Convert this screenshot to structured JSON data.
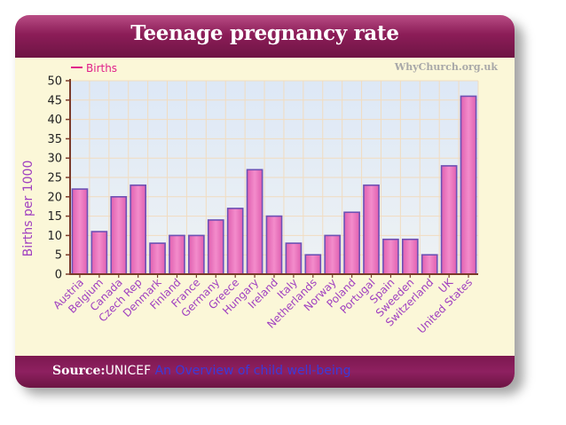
{
  "header": {
    "title": "Teenage pregnancy rate"
  },
  "watermark": "WhyChurch.org.uk",
  "footer": {
    "source_label": "Source:",
    "source_name": "UNICEF",
    "source_link": "An Overview of child well-being"
  },
  "colors": {
    "bar_fill": "#ec7ec0",
    "bar_stroke": "#6d50b4",
    "axis_label": "#a040c0",
    "header": "#8c1d58",
    "legend_line": "#e0208a"
  },
  "chart_data": {
    "type": "bar",
    "title": "Teenage pregnancy rate",
    "ylabel": "Births per 1000",
    "xlabel": "",
    "ylim": [
      0,
      50
    ],
    "yticks": [
      0,
      5,
      10,
      15,
      20,
      25,
      30,
      35,
      40,
      45,
      50
    ],
    "grid": true,
    "legend": {
      "position": "top-left",
      "entries": [
        "Births"
      ]
    },
    "categories": [
      "Austria",
      "Belgium",
      "Canada",
      "Czech Rep",
      "Denmark",
      "Finland",
      "France",
      "Germany",
      "Greece",
      "Hungary",
      "Ireland",
      "Italy",
      "Netherlands",
      "Norway",
      "Poland",
      "Portugal",
      "Spain",
      "Sweeden",
      "Switzerland",
      "UK",
      "United States"
    ],
    "series": [
      {
        "name": "Births",
        "values": [
          22,
          11,
          20,
          23,
          8,
          10,
          10,
          14,
          17,
          27,
          15,
          8,
          5,
          10,
          16,
          23,
          9,
          9,
          5,
          28,
          46
        ]
      }
    ]
  }
}
